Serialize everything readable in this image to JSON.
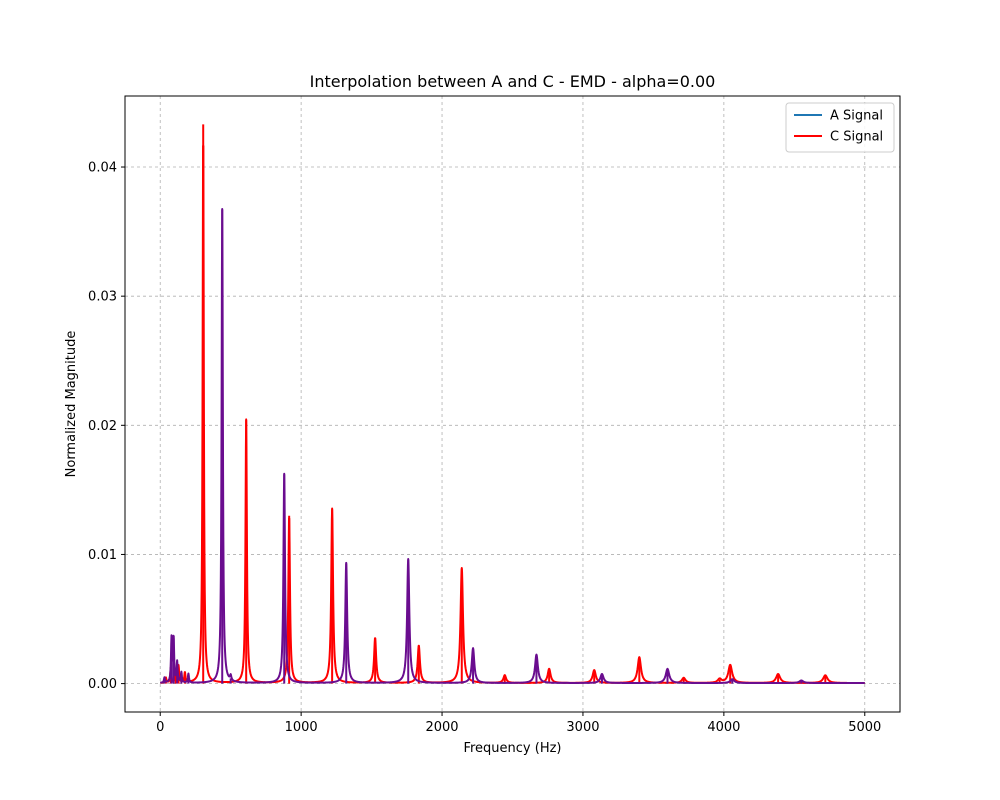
{
  "chart_data": {
    "type": "line",
    "title": "Interpolation between A and C - EMD - alpha=0.00",
    "xlabel": "Frequency (Hz)",
    "ylabel": "Normalized Magnitude",
    "xlim": [
      -250,
      5250
    ],
    "ylim": [
      -0.0022,
      0.0455
    ],
    "xticks": [
      0,
      1000,
      2000,
      3000,
      4000,
      5000
    ],
    "xtick_labels": [
      "0",
      "1000",
      "2000",
      "3000",
      "4000",
      "5000"
    ],
    "yticks": [
      0.0,
      0.01,
      0.02,
      0.03,
      0.04
    ],
    "ytick_labels": [
      "0.00",
      "0.01",
      "0.02",
      "0.03",
      "0.04"
    ],
    "grid": true,
    "legend_position": "upper right",
    "x_range": [
      0,
      5000
    ],
    "series": [
      {
        "name": "A Signal",
        "color": "#1f77b4",
        "legend_only": true,
        "peaks": []
      },
      {
        "name": "C Signal",
        "color": "#ff0000",
        "peaks": [
          {
            "x": 40,
            "y": 0.0004
          },
          {
            "x": 75,
            "y": 0.0012
          },
          {
            "x": 110,
            "y": 0.0009
          },
          {
            "x": 130,
            "y": 0.0013
          },
          {
            "x": 175,
            "y": 0.0008
          },
          {
            "x": 305,
            "y": 0.0433
          },
          {
            "x": 610,
            "y": 0.0204
          },
          {
            "x": 915,
            "y": 0.013
          },
          {
            "x": 1220,
            "y": 0.0135
          },
          {
            "x": 1525,
            "y": 0.0035
          },
          {
            "x": 1835,
            "y": 0.0029
          },
          {
            "x": 2140,
            "y": 0.0089
          },
          {
            "x": 2445,
            "y": 0.0006
          },
          {
            "x": 2760,
            "y": 0.0011
          },
          {
            "x": 3080,
            "y": 0.001
          },
          {
            "x": 3400,
            "y": 0.002
          },
          {
            "x": 3715,
            "y": 0.0004
          },
          {
            "x": 3970,
            "y": 0.0003
          },
          {
            "x": 4045,
            "y": 0.0014
          },
          {
            "x": 4385,
            "y": 0.0007
          },
          {
            "x": 4720,
            "y": 0.0006
          }
        ]
      },
      {
        "name": "",
        "color": "#6a0d8f",
        "peaks": [
          {
            "x": 30,
            "y": 0.0004
          },
          {
            "x": 80,
            "y": 0.0034
          },
          {
            "x": 95,
            "y": 0.0035
          },
          {
            "x": 120,
            "y": 0.0016
          },
          {
            "x": 150,
            "y": 0.0008
          },
          {
            "x": 200,
            "y": 0.0007
          },
          {
            "x": 440,
            "y": 0.0367
          },
          {
            "x": 500,
            "y": 0.0004
          },
          {
            "x": 880,
            "y": 0.0162
          },
          {
            "x": 1320,
            "y": 0.0093
          },
          {
            "x": 1760,
            "y": 0.0096
          },
          {
            "x": 2220,
            "y": 0.0027
          },
          {
            "x": 2670,
            "y": 0.0022
          },
          {
            "x": 3135,
            "y": 0.0007
          },
          {
            "x": 3600,
            "y": 0.0011
          },
          {
            "x": 4060,
            "y": 0.0003
          },
          {
            "x": 4550,
            "y": 0.0002
          }
        ]
      }
    ]
  }
}
